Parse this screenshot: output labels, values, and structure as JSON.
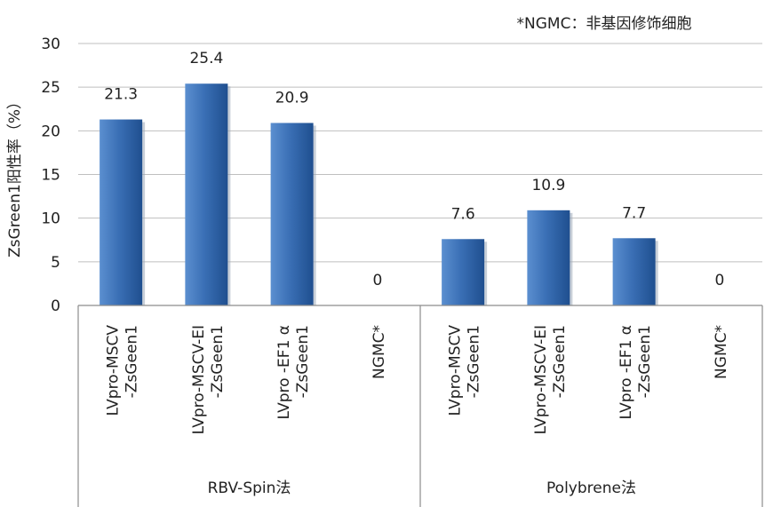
{
  "chart_data": {
    "type": "bar",
    "title": "",
    "xlabel": "",
    "ylabel": "ZsGreen1阳性率（%）",
    "ylim": [
      0,
      30
    ],
    "yticks": [
      0,
      5,
      10,
      15,
      20,
      25,
      30
    ],
    "grid": true,
    "note": "*NGMC：非基因修饰细胞",
    "groups": [
      {
        "label": "RBV-Spin法",
        "categories": [
          {
            "lines": [
              "LVpro-MSCV",
              "-ZsGeen1"
            ],
            "value": 21.3,
            "label": "21.3"
          },
          {
            "lines": [
              "LVpro-MSCV-EI",
              "-ZsGeen1"
            ],
            "value": 25.4,
            "label": "25.4"
          },
          {
            "lines": [
              "LVpro -EF1 α",
              "-ZsGeen1"
            ],
            "value": 20.9,
            "label": "20.9"
          },
          {
            "lines": [
              "NGMC*"
            ],
            "value": 0,
            "label": "0"
          }
        ]
      },
      {
        "label": "Polybrene法",
        "categories": [
          {
            "lines": [
              "LVpro-MSCV",
              "-ZsGeen1"
            ],
            "value": 7.6,
            "label": "7.6"
          },
          {
            "lines": [
              "LVpro-MSCV-EI",
              "-ZsGeen1"
            ],
            "value": 10.9,
            "label": "10.9"
          },
          {
            "lines": [
              "LVpro -EF1 α",
              "-ZsGeen1"
            ],
            "value": 7.7,
            "label": "7.7"
          },
          {
            "lines": [
              "NGMC*"
            ],
            "value": 0,
            "label": "0"
          }
        ]
      }
    ],
    "colors": {
      "bar_light": "#5b8fd0",
      "bar_dark": "#1f4f8f",
      "bar_mid": "#3a6fb5",
      "grid": "#bfbfbf",
      "axis": "#8c8c8c"
    }
  }
}
